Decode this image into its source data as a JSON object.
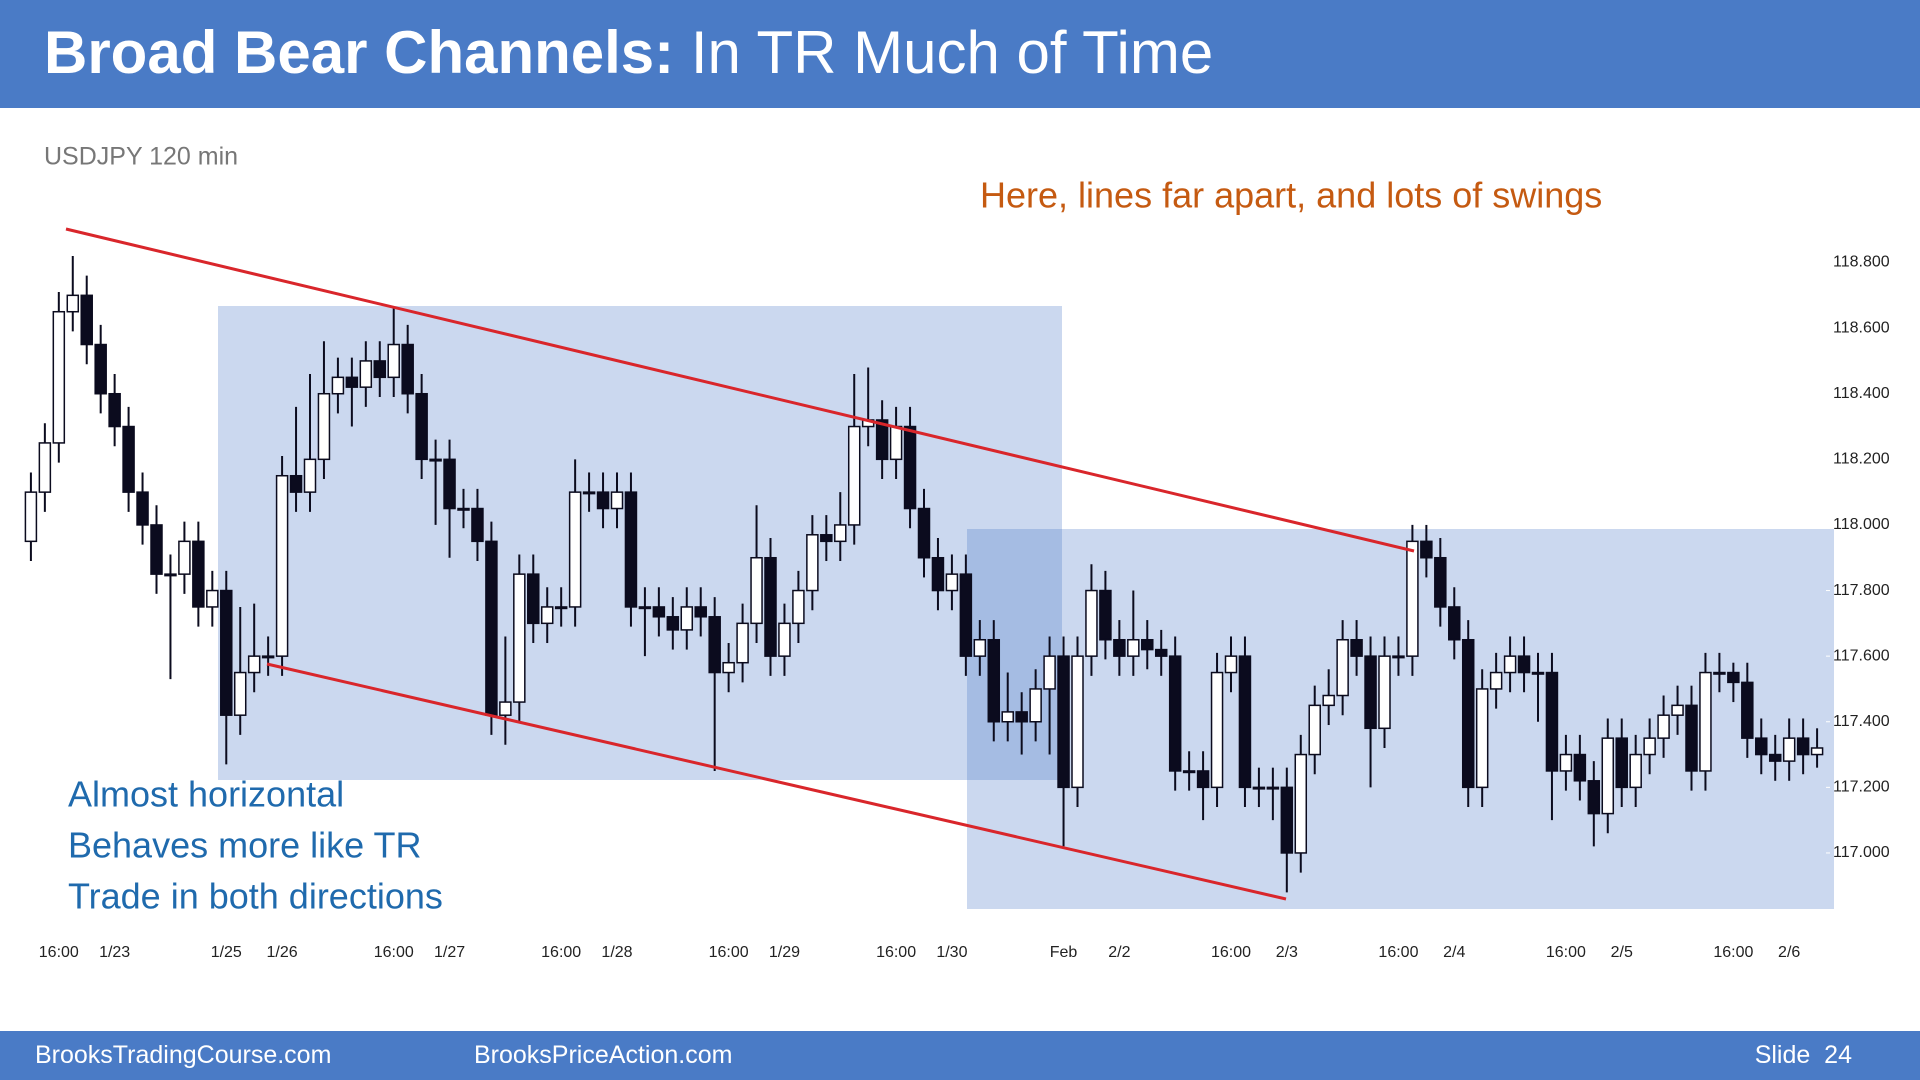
{
  "header": {
    "title_bold": "Broad Bear Channels:",
    "title_rest": "In TR Much of Time"
  },
  "chart_data": {
    "type": "candlestick",
    "subtitle": "USDJPY 120 min",
    "xlim": [
      -2,
      130
    ],
    "ylim": [
      116.82,
      118.89
    ],
    "xticks": [
      {
        "value": 2,
        "label": "16:00"
      },
      {
        "value": 6,
        "label": "1/23"
      },
      {
        "value": 14,
        "label": "1/25"
      },
      {
        "value": 18,
        "label": "1/26"
      },
      {
        "value": 26,
        "label": "16:00"
      },
      {
        "value": 30,
        "label": "1/27"
      },
      {
        "value": 38,
        "label": "16:00"
      },
      {
        "value": 42,
        "label": "1/28"
      },
      {
        "value": 50,
        "label": "16:00"
      },
      {
        "value": 54,
        "label": "1/29"
      },
      {
        "value": 62,
        "label": "16:00"
      },
      {
        "value": 66,
        "label": "1/30"
      },
      {
        "value": 74,
        "label": "Feb"
      },
      {
        "value": 78,
        "label": "2/2"
      },
      {
        "value": 86,
        "label": "16:00"
      },
      {
        "value": 90,
        "label": "2/3"
      },
      {
        "value": 98,
        "label": "16:00"
      },
      {
        "value": 102,
        "label": "2/4"
      },
      {
        "value": 110,
        "label": "16:00"
      },
      {
        "value": 114,
        "label": "2/5"
      },
      {
        "value": 122,
        "label": "16:00"
      },
      {
        "value": 126,
        "label": "2/6"
      }
    ],
    "yticks": [
      {
        "value": 118.8,
        "label": "118.800"
      },
      {
        "value": 118.6,
        "label": "118.600"
      },
      {
        "value": 118.4,
        "label": "118.400"
      },
      {
        "value": 118.2,
        "label": "118.200"
      },
      {
        "value": 118.0,
        "label": "118.000"
      },
      {
        "value": 117.8,
        "label": "117.800"
      },
      {
        "value": 117.6,
        "label": "117.600"
      },
      {
        "value": 117.4,
        "label": "117.400"
      },
      {
        "value": 117.2,
        "label": "117.200"
      },
      {
        "value": 117.0,
        "label": "117.000"
      }
    ],
    "up_color": "#ffffff",
    "down_color": "#0b0b1e",
    "open": [
      117.95,
      118.1,
      118.25,
      118.65,
      118.7,
      118.55,
      118.4,
      118.3,
      118.1,
      118.0,
      117.85,
      117.85,
      117.95,
      117.75,
      117.8,
      117.42,
      117.55,
      117.6,
      117.6,
      118.15,
      118.1,
      118.2,
      118.4,
      118.45,
      118.42,
      118.5,
      118.45,
      118.55,
      118.4,
      118.2,
      118.2,
      118.05,
      118.05,
      117.95,
      117.42,
      117.46,
      117.85,
      117.7,
      117.75,
      117.75,
      118.1,
      118.1,
      118.05,
      118.1,
      117.75,
      117.75,
      117.72,
      117.68,
      117.75,
      117.72,
      117.55,
      117.58,
      117.7,
      117.9,
      117.6,
      117.7,
      117.8,
      117.97,
      117.95,
      118.0,
      118.3,
      118.32,
      118.2,
      118.3,
      118.05,
      117.9,
      117.8,
      117.85,
      117.6,
      117.65,
      117.4,
      117.43,
      117.4,
      117.5,
      117.6,
      117.2,
      117.6,
      117.8,
      117.65,
      117.6,
      117.65,
      117.62,
      117.6,
      117.25,
      117.25,
      117.2,
      117.55,
      117.6,
      117.2,
      117.2,
      117.2,
      117.0,
      117.3,
      117.45,
      117.48,
      117.65,
      117.6,
      117.38,
      117.6,
      117.6,
      117.95,
      117.9,
      117.75,
      117.65,
      117.2,
      117.5,
      117.55,
      117.6,
      117.55,
      117.55,
      117.25,
      117.3,
      117.22,
      117.12,
      117.35,
      117.2,
      117.3,
      117.35,
      117.42,
      117.45,
      117.25,
      117.55,
      117.55,
      117.52,
      117.35,
      117.3,
      117.28,
      117.35,
      117.3
    ],
    "high": [
      118.16,
      118.31,
      118.71,
      118.82,
      118.76,
      118.61,
      118.46,
      118.36,
      118.16,
      118.06,
      117.91,
      118.01,
      118.01,
      117.86,
      117.86,
      117.75,
      117.76,
      117.66,
      118.21,
      118.36,
      118.46,
      118.56,
      118.51,
      118.51,
      118.56,
      118.56,
      118.66,
      118.61,
      118.46,
      118.26,
      118.26,
      118.11,
      118.11,
      118.01,
      117.66,
      117.91,
      117.91,
      117.81,
      117.81,
      118.2,
      118.16,
      118.16,
      118.16,
      118.16,
      117.81,
      117.81,
      117.78,
      117.81,
      117.81,
      117.78,
      117.64,
      117.76,
      118.06,
      117.96,
      117.76,
      117.86,
      118.03,
      118.03,
      118.1,
      118.46,
      118.48,
      118.38,
      118.36,
      118.36,
      118.11,
      117.96,
      117.91,
      117.91,
      117.71,
      117.71,
      117.55,
      117.49,
      117.56,
      117.66,
      117.66,
      117.66,
      117.88,
      117.86,
      117.71,
      117.8,
      117.71,
      117.68,
      117.66,
      117.31,
      117.31,
      117.61,
      117.66,
      117.66,
      117.26,
      117.26,
      117.26,
      117.36,
      117.51,
      117.56,
      117.71,
      117.71,
      117.66,
      117.66,
      117.66,
      118.0,
      118.0,
      117.96,
      117.81,
      117.71,
      117.56,
      117.61,
      117.66,
      117.66,
      117.61,
      117.61,
      117.36,
      117.36,
      117.28,
      117.41,
      117.41,
      117.36,
      117.41,
      117.48,
      117.51,
      117.51,
      117.61,
      117.61,
      117.58,
      117.58,
      117.41,
      117.36,
      117.41,
      117.41,
      117.38
    ],
    "low": [
      117.89,
      118.04,
      118.19,
      118.59,
      118.49,
      118.34,
      118.24,
      118.04,
      117.94,
      117.79,
      117.53,
      117.79,
      117.69,
      117.69,
      117.27,
      117.36,
      117.49,
      117.54,
      117.54,
      118.04,
      118.04,
      118.14,
      118.34,
      118.3,
      118.36,
      118.39,
      118.39,
      118.34,
      118.14,
      118.0,
      117.9,
      117.99,
      117.89,
      117.36,
      117.33,
      117.4,
      117.64,
      117.64,
      117.69,
      117.69,
      118.04,
      117.99,
      117.99,
      117.69,
      117.6,
      117.66,
      117.62,
      117.62,
      117.66,
      117.25,
      117.49,
      117.52,
      117.64,
      117.54,
      117.54,
      117.64,
      117.74,
      117.89,
      117.89,
      117.94,
      118.24,
      118.14,
      118.14,
      117.99,
      117.84,
      117.74,
      117.74,
      117.54,
      117.54,
      117.34,
      117.34,
      117.3,
      117.34,
      117.3,
      117.02,
      117.14,
      117.54,
      117.59,
      117.54,
      117.54,
      117.56,
      117.54,
      117.19,
      117.19,
      117.1,
      117.14,
      117.49,
      117.14,
      117.14,
      117.1,
      116.88,
      116.94,
      117.24,
      117.39,
      117.42,
      117.54,
      117.2,
      117.32,
      117.54,
      117.54,
      117.84,
      117.69,
      117.59,
      117.14,
      117.14,
      117.44,
      117.49,
      117.49,
      117.4,
      117.1,
      117.19,
      117.16,
      117.02,
      117.06,
      117.14,
      117.14,
      117.24,
      117.29,
      117.36,
      117.19,
      117.19,
      117.49,
      117.46,
      117.29,
      117.24,
      117.22,
      117.22,
      117.24,
      117.26
    ],
    "close": [
      118.1,
      118.25,
      118.65,
      118.7,
      118.55,
      118.4,
      118.3,
      118.1,
      118.0,
      117.85,
      117.85,
      117.95,
      117.75,
      117.8,
      117.42,
      117.55,
      117.6,
      117.6,
      118.15,
      118.1,
      118.2,
      118.4,
      118.45,
      118.42,
      118.5,
      118.45,
      118.55,
      118.4,
      118.2,
      118.2,
      118.05,
      118.05,
      117.95,
      117.42,
      117.46,
      117.85,
      117.7,
      117.75,
      117.75,
      118.1,
      118.1,
      118.05,
      118.1,
      117.75,
      117.75,
      117.72,
      117.68,
      117.75,
      117.72,
      117.55,
      117.58,
      117.7,
      117.9,
      117.6,
      117.7,
      117.8,
      117.97,
      117.95,
      118.0,
      118.3,
      118.32,
      118.2,
      118.3,
      118.05,
      117.9,
      117.8,
      117.85,
      117.6,
      117.65,
      117.4,
      117.43,
      117.4,
      117.5,
      117.6,
      117.2,
      117.6,
      117.8,
      117.65,
      117.6,
      117.65,
      117.62,
      117.6,
      117.25,
      117.25,
      117.2,
      117.55,
      117.6,
      117.2,
      117.2,
      117.2,
      117.0,
      117.3,
      117.45,
      117.48,
      117.65,
      117.6,
      117.38,
      117.6,
      117.6,
      117.95,
      117.9,
      117.75,
      117.65,
      117.2,
      117.5,
      117.55,
      117.6,
      117.55,
      117.55,
      117.25,
      117.3,
      117.22,
      117.12,
      117.35,
      117.2,
      117.3,
      117.35,
      117.42,
      117.45,
      117.25,
      117.55,
      117.55,
      117.52,
      117.35,
      117.3,
      117.28,
      117.35,
      117.3,
      117.32
    ]
  },
  "annotations": {
    "note": "Here, lines far apart, and lots of swings",
    "lines": [
      "Almost horizontal",
      "Behaves more like TR",
      "Trade in both directions"
    ]
  },
  "footer": {
    "left": "BrooksTradingCourse.com",
    "center": "BrooksPriceAction.com",
    "slide": "Slide  24"
  }
}
